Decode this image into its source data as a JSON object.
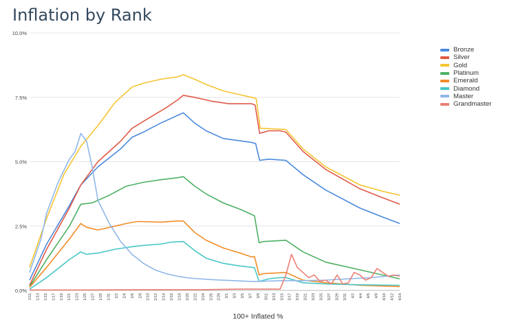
{
  "title": "Inflation by Rank",
  "chart_data": {
    "type": "line",
    "xlabel": "100+ Inflated %",
    "ylabel": "",
    "ylim": [
      0,
      10
    ],
    "yticks": [
      0,
      2.5,
      5,
      7.5,
      10
    ],
    "ytick_labels": [
      "0.0%",
      "2.5%",
      "5.0%",
      "7.5%",
      "10.0%"
    ],
    "grid": true,
    "legend_position": "right",
    "x_tick_labels": [
      "1/11",
      "1/13",
      "1/15",
      "1/17",
      "1/19",
      "1/21",
      "1/23",
      "1/25",
      "1/27",
      "1/29",
      "1/31",
      "2/2",
      "2/4",
      "2/6",
      "2/8",
      "2/10",
      "2/12",
      "2/14",
      "2/16",
      "2/18",
      "2/20",
      "2/22",
      "2/24",
      "2/26",
      "2/28",
      "3/1",
      "3/3",
      "3/5",
      "3/7",
      "3/9",
      "3/11",
      "3/13",
      "3/15",
      "3/17",
      "3/19",
      "3/21",
      "3/23",
      "3/25",
      "3/27",
      "3/29",
      "3/31",
      "4/2",
      "4/4",
      "4/6",
      "4/8",
      "4/10",
      "4/12",
      "4/14"
    ],
    "series": [
      {
        "name": "Bronze",
        "color": "#4a89dc",
        "points": [
          [
            0,
            0.4
          ],
          [
            3,
            1.8
          ],
          [
            7,
            3.3
          ],
          [
            9,
            4.1
          ],
          [
            12,
            4.8
          ],
          [
            16,
            5.5
          ],
          [
            18,
            5.95
          ],
          [
            20,
            6.15
          ],
          [
            23,
            6.5
          ],
          [
            26,
            6.8
          ],
          [
            27,
            6.9
          ],
          [
            29,
            6.5
          ],
          [
            31,
            6.2
          ],
          [
            34,
            5.9
          ],
          [
            39,
            5.75
          ],
          [
            39.7,
            5.7
          ],
          [
            40.4,
            5.05
          ],
          [
            42,
            5.1
          ],
          [
            45,
            5.05
          ],
          [
            48,
            4.5
          ],
          [
            52,
            3.9
          ],
          [
            58,
            3.2
          ],
          [
            62,
            2.85
          ],
          [
            65,
            2.6
          ]
        ]
      },
      {
        "name": "Silver",
        "color": "#e05a47",
        "points": [
          [
            0,
            0.2
          ],
          [
            3,
            1.6
          ],
          [
            7,
            3.2
          ],
          [
            9,
            4.1
          ],
          [
            12,
            5
          ],
          [
            16,
            5.8
          ],
          [
            18,
            6.3
          ],
          [
            21,
            6.7
          ],
          [
            24,
            7.1
          ],
          [
            26,
            7.4
          ],
          [
            27,
            7.58
          ],
          [
            29,
            7.5
          ],
          [
            32,
            7.35
          ],
          [
            35,
            7.25
          ],
          [
            39,
            7.25
          ],
          [
            39.6,
            7.2
          ],
          [
            40.4,
            6.1
          ],
          [
            42,
            6.2
          ],
          [
            44,
            6.2
          ],
          [
            45,
            6.15
          ],
          [
            48,
            5.4
          ],
          [
            52,
            4.7
          ],
          [
            58,
            3.95
          ],
          [
            62,
            3.6
          ],
          [
            65,
            3.35
          ]
        ]
      },
      {
        "name": "Gold",
        "color": "#f5c42f",
        "points": [
          [
            0,
            0.9
          ],
          [
            3,
            2.8
          ],
          [
            6,
            4.5
          ],
          [
            9,
            5.6
          ],
          [
            12,
            6.4
          ],
          [
            15,
            7.3
          ],
          [
            18,
            7.9
          ],
          [
            20,
            8.05
          ],
          [
            23,
            8.2
          ],
          [
            26,
            8.3
          ],
          [
            27,
            8.38
          ],
          [
            29,
            8.2
          ],
          [
            31,
            8
          ],
          [
            34,
            7.75
          ],
          [
            37,
            7.6
          ],
          [
            39,
            7.5
          ],
          [
            39.8,
            7.45
          ],
          [
            40.5,
            6.3
          ],
          [
            45,
            6.25
          ],
          [
            48,
            5.5
          ],
          [
            52,
            4.8
          ],
          [
            58,
            4.1
          ],
          [
            62,
            3.85
          ],
          [
            65,
            3.7
          ]
        ]
      },
      {
        "name": "Platinum",
        "color": "#4caf62",
        "points": [
          [
            0,
            0.15
          ],
          [
            3,
            1.2
          ],
          [
            7,
            2.5
          ],
          [
            9,
            3.35
          ],
          [
            11,
            3.4
          ],
          [
            14,
            3.7
          ],
          [
            17,
            4.05
          ],
          [
            20,
            4.2
          ],
          [
            23,
            4.3
          ],
          [
            26,
            4.38
          ],
          [
            27,
            4.42
          ],
          [
            29,
            4.05
          ],
          [
            31,
            3.75
          ],
          [
            34,
            3.4
          ],
          [
            37,
            3.15
          ],
          [
            39,
            2.95
          ],
          [
            39.5,
            2.9
          ],
          [
            40.3,
            1.85
          ],
          [
            41,
            1.9
          ],
          [
            45,
            1.95
          ],
          [
            48,
            1.5
          ],
          [
            52,
            1.1
          ],
          [
            58,
            0.8
          ],
          [
            62,
            0.6
          ],
          [
            65,
            0.45
          ]
        ]
      },
      {
        "name": "Emerald",
        "color": "#f28c28",
        "points": [
          [
            0,
            0.12
          ],
          [
            3,
            0.9
          ],
          [
            7,
            2
          ],
          [
            9,
            2.6
          ],
          [
            10,
            2.45
          ],
          [
            12,
            2.35
          ],
          [
            15,
            2.5
          ],
          [
            17,
            2.6
          ],
          [
            19,
            2.68
          ],
          [
            23,
            2.65
          ],
          [
            26,
            2.7
          ],
          [
            27,
            2.7
          ],
          [
            29,
            2.25
          ],
          [
            31,
            1.95
          ],
          [
            34,
            1.65
          ],
          [
            37,
            1.45
          ],
          [
            39,
            1.3
          ],
          [
            39.5,
            1.32
          ],
          [
            40.3,
            0.6
          ],
          [
            41,
            0.65
          ],
          [
            45,
            0.7
          ],
          [
            48,
            0.4
          ],
          [
            52,
            0.3
          ],
          [
            58,
            0.2
          ],
          [
            65,
            0.15
          ]
        ]
      },
      {
        "name": "Diamond",
        "color": "#48c6c6",
        "points": [
          [
            0,
            0.05
          ],
          [
            3,
            0.5
          ],
          [
            7,
            1.2
          ],
          [
            9,
            1.5
          ],
          [
            10,
            1.4
          ],
          [
            12,
            1.45
          ],
          [
            15,
            1.6
          ],
          [
            18,
            1.7
          ],
          [
            20,
            1.75
          ],
          [
            23,
            1.8
          ],
          [
            25,
            1.88
          ],
          [
            27,
            1.9
          ],
          [
            29,
            1.55
          ],
          [
            31,
            1.25
          ],
          [
            34,
            1.05
          ],
          [
            37,
            0.95
          ],
          [
            39,
            0.9
          ],
          [
            39.5,
            0.88
          ],
          [
            40.3,
            0.35
          ],
          [
            42,
            0.45
          ],
          [
            44,
            0.5
          ],
          [
            45,
            0.5
          ],
          [
            48,
            0.3
          ],
          [
            52,
            0.25
          ],
          [
            58,
            0.22
          ],
          [
            65,
            0.2
          ]
        ]
      },
      {
        "name": "Master",
        "color": "#8fb7e8",
        "points": [
          [
            0,
            0.7
          ],
          [
            2,
            2
          ],
          [
            3,
            3
          ],
          [
            5,
            4.2
          ],
          [
            7,
            5.1
          ],
          [
            8,
            5.4
          ],
          [
            9,
            6.1
          ],
          [
            10,
            5.8
          ],
          [
            11,
            4.8
          ],
          [
            12,
            3.5
          ],
          [
            14,
            2.6
          ],
          [
            16,
            1.9
          ],
          [
            18,
            1.4
          ],
          [
            20,
            1.05
          ],
          [
            22,
            0.8
          ],
          [
            24,
            0.65
          ],
          [
            26,
            0.55
          ],
          [
            28,
            0.48
          ],
          [
            32,
            0.42
          ],
          [
            36,
            0.38
          ],
          [
            39,
            0.35
          ],
          [
            40,
            0.35
          ],
          [
            44,
            0.38
          ],
          [
            48,
            0.38
          ],
          [
            52,
            0.4
          ],
          [
            56,
            0.45
          ],
          [
            60,
            0.5
          ],
          [
            65,
            0.6
          ]
        ]
      },
      {
        "name": "Grandmaster",
        "color": "#eb7f74",
        "points": [
          [
            0,
            0.02
          ],
          [
            10,
            0.02
          ],
          [
            20,
            0.03
          ],
          [
            30,
            0.03
          ],
          [
            37,
            0.05
          ],
          [
            42,
            0.05
          ],
          [
            44,
            0.05
          ],
          [
            45,
            0.6
          ],
          [
            46,
            1.4
          ],
          [
            47,
            0.9
          ],
          [
            48,
            0.7
          ],
          [
            49,
            0.5
          ],
          [
            50,
            0.6
          ],
          [
            51,
            0.35
          ],
          [
            52,
            0.4
          ],
          [
            53,
            0.25
          ],
          [
            54,
            0.6
          ],
          [
            55,
            0.25
          ],
          [
            56,
            0.3
          ],
          [
            57,
            0.7
          ],
          [
            58,
            0.6
          ],
          [
            59,
            0.4
          ],
          [
            60,
            0.5
          ],
          [
            61,
            0.85
          ],
          [
            62,
            0.7
          ],
          [
            63,
            0.55
          ],
          [
            64,
            0.6
          ],
          [
            65,
            0.55
          ]
        ]
      }
    ]
  }
}
